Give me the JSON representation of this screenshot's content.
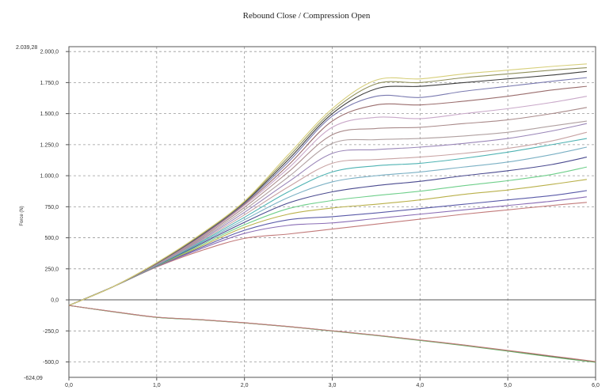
{
  "chart_data": {
    "type": "line",
    "title": "Rebound Close / Compression Open",
    "xlabel": "",
    "ylabel": "Force (N)",
    "xlim": [
      0,
      6
    ],
    "ylim": [
      -624.09,
      2039.28
    ],
    "ylim_labels": [
      "2.039,28",
      "-624,09"
    ],
    "grid": true,
    "x_ticks": [
      0,
      1,
      2,
      3,
      4,
      5,
      6
    ],
    "x_tick_labels": [
      "0,0",
      "1,0",
      "2,0",
      "3,0",
      "4,0",
      "5,0",
      "6,0"
    ],
    "y_ticks": [
      -500,
      -250,
      0,
      250,
      500,
      750,
      1000,
      1250,
      1500,
      1750,
      2000
    ],
    "y_tick_labels": [
      "-500,0",
      "-250,0",
      "0,0",
      "250,0",
      "500,0",
      "750,0",
      "1.000,0",
      "1.250,0",
      "1.500,0",
      "1.750,0",
      "2.000,0"
    ],
    "colors": {
      "grid": "#9a9a9a",
      "axis": "#555555",
      "zero_line": "#555555"
    },
    "series": [
      {
        "color": "#c27a7a",
        "values": [
          [
            0,
            -45
          ],
          [
            0.5,
            105
          ],
          [
            1,
            265
          ],
          [
            1.5,
            395
          ],
          [
            2,
            495
          ],
          [
            2.5,
            530
          ],
          [
            3,
            570
          ],
          [
            3.5,
            610
          ],
          [
            4,
            650
          ],
          [
            4.5,
            690
          ],
          [
            5,
            725
          ],
          [
            5.5,
            760
          ],
          [
            5.9,
            785
          ]
        ]
      },
      {
        "color": "#8a6db5",
        "values": [
          [
            0,
            -45
          ],
          [
            0.5,
            105
          ],
          [
            1,
            268
          ],
          [
            1.5,
            410
          ],
          [
            2,
            535
          ],
          [
            2.5,
            600
          ],
          [
            3,
            620
          ],
          [
            3.5,
            655
          ],
          [
            4,
            690
          ],
          [
            4.5,
            725
          ],
          [
            5,
            760
          ],
          [
            5.5,
            795
          ],
          [
            5.9,
            830
          ]
        ]
      },
      {
        "color": "#5a5aa8",
        "values": [
          [
            0,
            -45
          ],
          [
            0.5,
            105
          ],
          [
            1,
            270
          ],
          [
            1.5,
            420
          ],
          [
            2,
            560
          ],
          [
            2.5,
            645
          ],
          [
            3,
            670
          ],
          [
            3.5,
            700
          ],
          [
            4,
            735
          ],
          [
            4.5,
            770
          ],
          [
            5,
            805
          ],
          [
            5.5,
            840
          ],
          [
            5.9,
            880
          ]
        ]
      },
      {
        "color": "#b9b04a",
        "values": [
          [
            0,
            -45
          ],
          [
            0.5,
            105
          ],
          [
            1,
            272
          ],
          [
            1.5,
            430
          ],
          [
            2,
            585
          ],
          [
            2.5,
            690
          ],
          [
            3,
            740
          ],
          [
            3.5,
            770
          ],
          [
            4,
            805
          ],
          [
            4.5,
            850
          ],
          [
            5,
            885
          ],
          [
            5.5,
            930
          ],
          [
            5.9,
            970
          ]
        ]
      },
      {
        "color": "#6fcf8b",
        "values": [
          [
            0,
            -45
          ],
          [
            0.5,
            105
          ],
          [
            1,
            274
          ],
          [
            1.5,
            440
          ],
          [
            2,
            605
          ],
          [
            2.5,
            735
          ],
          [
            3,
            800
          ],
          [
            3.5,
            840
          ],
          [
            4,
            875
          ],
          [
            4.5,
            920
          ],
          [
            5,
            960
          ],
          [
            5.5,
            1010
          ],
          [
            5.9,
            1070
          ]
        ]
      },
      {
        "color": "#4a4a8f",
        "values": [
          [
            0,
            -45
          ],
          [
            0.5,
            105
          ],
          [
            1,
            276
          ],
          [
            1.5,
            450
          ],
          [
            2,
            625
          ],
          [
            2.5,
            780
          ],
          [
            3,
            870
          ],
          [
            3.5,
            920
          ],
          [
            4,
            955
          ],
          [
            4.5,
            1000
          ],
          [
            5,
            1040
          ],
          [
            5.5,
            1090
          ],
          [
            5.9,
            1150
          ]
        ]
      },
      {
        "color": "#7ab0c4",
        "values": [
          [
            0,
            -45
          ],
          [
            0.5,
            105
          ],
          [
            1,
            278
          ],
          [
            1.5,
            458
          ],
          [
            2,
            645
          ],
          [
            2.5,
            825
          ],
          [
            3,
            950
          ],
          [
            3.5,
            1000
          ],
          [
            4,
            1030
          ],
          [
            4.5,
            1070
          ],
          [
            5,
            1110
          ],
          [
            5.5,
            1170
          ],
          [
            5.9,
            1230
          ]
        ]
      },
      {
        "color": "#4fb3b3",
        "values": [
          [
            0,
            -45
          ],
          [
            0.5,
            105
          ],
          [
            1,
            280
          ],
          [
            1.5,
            466
          ],
          [
            2,
            665
          ],
          [
            2.5,
            870
          ],
          [
            3,
            1030
          ],
          [
            3.5,
            1080
          ],
          [
            4,
            1100
          ],
          [
            4.5,
            1140
          ],
          [
            5,
            1190
          ],
          [
            5.5,
            1250
          ],
          [
            5.9,
            1300
          ]
        ]
      },
      {
        "color": "#c8a3a3",
        "values": [
          [
            0,
            -45
          ],
          [
            0.5,
            105
          ],
          [
            1,
            282
          ],
          [
            1.5,
            474
          ],
          [
            2,
            685
          ],
          [
            2.5,
            910
          ],
          [
            3,
            1100
          ],
          [
            3.5,
            1130
          ],
          [
            4,
            1150
          ],
          [
            4.5,
            1180
          ],
          [
            5,
            1220
          ],
          [
            5.5,
            1280
          ],
          [
            5.9,
            1350
          ]
        ]
      },
      {
        "color": "#9a86b8",
        "values": [
          [
            0,
            -45
          ],
          [
            0.5,
            105
          ],
          [
            1,
            284
          ],
          [
            1.5,
            482
          ],
          [
            2,
            705
          ],
          [
            2.5,
            950
          ],
          [
            3,
            1180
          ],
          [
            3.5,
            1210
          ],
          [
            4,
            1230
          ],
          [
            4.5,
            1260
          ],
          [
            5,
            1300
          ],
          [
            5.5,
            1360
          ],
          [
            5.9,
            1420
          ]
        ]
      },
      {
        "color": "#b0a0a0",
        "values": [
          [
            0,
            -45
          ],
          [
            0.5,
            105
          ],
          [
            1,
            286
          ],
          [
            1.5,
            490
          ],
          [
            2,
            725
          ],
          [
            2.5,
            990
          ],
          [
            3,
            1260
          ],
          [
            3.5,
            1290
          ],
          [
            4,
            1300
          ],
          [
            4.5,
            1320
          ],
          [
            5,
            1350
          ],
          [
            5.5,
            1400
          ],
          [
            5.9,
            1440
          ]
        ]
      },
      {
        "color": "#a98a8a",
        "values": [
          [
            0,
            -45
          ],
          [
            0.5,
            105
          ],
          [
            1,
            288
          ],
          [
            1.5,
            498
          ],
          [
            2,
            745
          ],
          [
            2.5,
            1030
          ],
          [
            3,
            1330
          ],
          [
            3.5,
            1380
          ],
          [
            4,
            1390
          ],
          [
            4.5,
            1420
          ],
          [
            5,
            1450
          ],
          [
            5.5,
            1500
          ],
          [
            5.9,
            1550
          ]
        ]
      },
      {
        "color": "#c9a8c9",
        "values": [
          [
            0,
            -45
          ],
          [
            0.5,
            105
          ],
          [
            1,
            290
          ],
          [
            1.5,
            505
          ],
          [
            2,
            760
          ],
          [
            2.5,
            1060
          ],
          [
            3,
            1390
          ],
          [
            3.5,
            1470
          ],
          [
            4,
            1460
          ],
          [
            4.5,
            1500
          ],
          [
            5,
            1540
          ],
          [
            5.5,
            1590
          ],
          [
            5.9,
            1640
          ]
        ]
      },
      {
        "color": "#9a6d6d",
        "values": [
          [
            0,
            -45
          ],
          [
            0.5,
            105
          ],
          [
            1,
            292
          ],
          [
            1.5,
            510
          ],
          [
            2,
            770
          ],
          [
            2.5,
            1085
          ],
          [
            3,
            1440
          ],
          [
            3.5,
            1570
          ],
          [
            4,
            1570
          ],
          [
            4.5,
            1600
          ],
          [
            5,
            1640
          ],
          [
            5.5,
            1690
          ],
          [
            5.9,
            1720
          ]
        ]
      },
      {
        "color": "#7a7ab0",
        "values": [
          [
            0,
            -45
          ],
          [
            0.5,
            105
          ],
          [
            1,
            294
          ],
          [
            1.5,
            515
          ],
          [
            2,
            778
          ],
          [
            2.5,
            1110
          ],
          [
            3,
            1480
          ],
          [
            3.5,
            1640
          ],
          [
            4,
            1630
          ],
          [
            4.5,
            1680
          ],
          [
            5,
            1720
          ],
          [
            5.5,
            1760
          ],
          [
            5.9,
            1790
          ]
        ]
      },
      {
        "color": "#3d3d3d",
        "values": [
          [
            0,
            -45
          ],
          [
            0.5,
            105
          ],
          [
            1,
            296
          ],
          [
            1.5,
            520
          ],
          [
            2,
            785
          ],
          [
            2.5,
            1130
          ],
          [
            3,
            1500
          ],
          [
            3.5,
            1700
          ],
          [
            4,
            1720
          ],
          [
            4.5,
            1750
          ],
          [
            5,
            1780
          ],
          [
            5.5,
            1810
          ],
          [
            5.9,
            1840
          ]
        ]
      },
      {
        "color": "#8f8f5a",
        "values": [
          [
            0,
            -45
          ],
          [
            0.5,
            105
          ],
          [
            1,
            298
          ],
          [
            1.5,
            524
          ],
          [
            2,
            790
          ],
          [
            2.5,
            1150
          ],
          [
            3,
            1520
          ],
          [
            3.5,
            1740
          ],
          [
            4,
            1750
          ],
          [
            4.5,
            1790
          ],
          [
            5,
            1820
          ],
          [
            5.5,
            1850
          ],
          [
            5.9,
            1870
          ]
        ]
      },
      {
        "color": "#d7cf7a",
        "values": [
          [
            0,
            -45
          ],
          [
            0.5,
            105
          ],
          [
            1,
            300
          ],
          [
            1.5,
            528
          ],
          [
            2,
            795
          ],
          [
            2.5,
            1170
          ],
          [
            3,
            1540
          ],
          [
            3.5,
            1770
          ],
          [
            4,
            1780
          ],
          [
            4.5,
            1820
          ],
          [
            5,
            1850
          ],
          [
            5.5,
            1880
          ],
          [
            5.9,
            1900
          ]
        ]
      },
      {
        "color": "#3a3a3a",
        "values": [
          [
            0,
            -45
          ],
          [
            0.5,
            -95
          ],
          [
            1,
            -140
          ],
          [
            1.5,
            -160
          ],
          [
            2,
            -185
          ],
          [
            2.5,
            -215
          ],
          [
            3,
            -250
          ],
          [
            3.5,
            -285
          ],
          [
            4,
            -325
          ],
          [
            4.5,
            -365
          ],
          [
            5,
            -410
          ],
          [
            5.5,
            -455
          ],
          [
            6,
            -500
          ]
        ]
      },
      {
        "color": "#5faa5f",
        "values": [
          [
            0,
            -45
          ],
          [
            0.5,
            -96
          ],
          [
            1,
            -141
          ],
          [
            1.5,
            -161
          ],
          [
            2,
            -186
          ],
          [
            2.5,
            -216
          ],
          [
            3,
            -251
          ],
          [
            3.5,
            -287
          ],
          [
            4,
            -327
          ],
          [
            4.5,
            -368
          ],
          [
            5,
            -413
          ],
          [
            5.5,
            -460
          ],
          [
            6,
            -503
          ]
        ]
      },
      {
        "color": "#c27a7a",
        "values": [
          [
            0,
            -45
          ],
          [
            0.5,
            -94
          ],
          [
            1,
            -139
          ],
          [
            1.5,
            -159
          ],
          [
            2,
            -184
          ],
          [
            2.5,
            -214
          ],
          [
            3,
            -249
          ],
          [
            3.5,
            -284
          ],
          [
            4,
            -323
          ],
          [
            4.5,
            -363
          ],
          [
            5,
            -407
          ],
          [
            5.5,
            -452
          ],
          [
            6,
            -497
          ]
        ]
      }
    ]
  }
}
